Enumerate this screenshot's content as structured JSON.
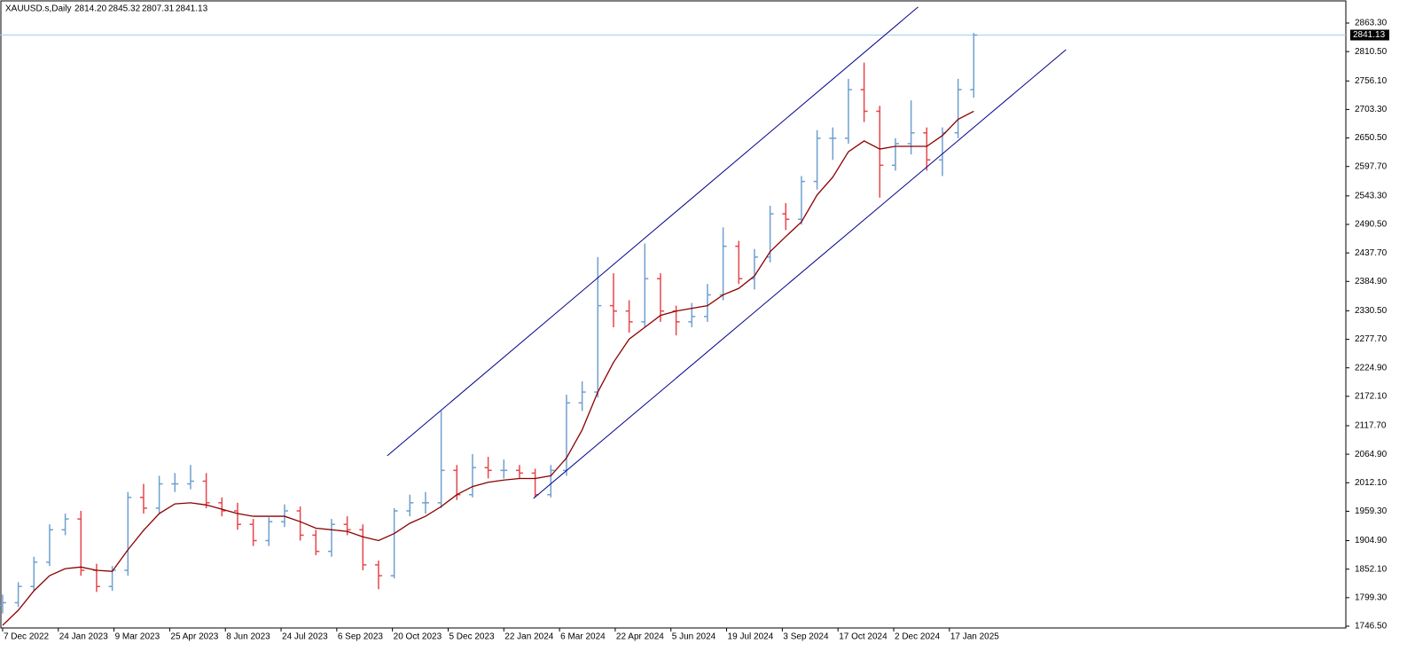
{
  "chart_data": {
    "type": "ohlc",
    "header": {
      "symbol": "XAUUSD.s,Daily",
      "open": "2814.20",
      "high": "2845.32",
      "low": "2807.31",
      "close": "2841.13"
    },
    "up_color": "#6f9fd0",
    "down_color": "#e8464b",
    "ma_color": "#8b0000",
    "trend_color": "#00008b",
    "price_line_color": "#9fd3ec",
    "xlim": [
      -1.5,
      771.8
    ],
    "ylim": [
      1743.2,
      2906.0
    ],
    "xticks": [
      {
        "value": 0,
        "label": "7 Dec 2022"
      },
      {
        "value": 32,
        "label": "24 Jan 2023"
      },
      {
        "value": 64,
        "label": "9 Mar 2023"
      },
      {
        "value": 96,
        "label": "25 Apr 2023"
      },
      {
        "value": 128,
        "label": "8 Jun 2023"
      },
      {
        "value": 160,
        "label": "24 Jul 2023"
      },
      {
        "value": 192,
        "label": "6 Sep 2023"
      },
      {
        "value": 224,
        "label": "20 Oct 2023"
      },
      {
        "value": 256,
        "label": "5 Dec 2023"
      },
      {
        "value": 288,
        "label": "22 Jan 2024"
      },
      {
        "value": 320,
        "label": "6 Mar 2024"
      },
      {
        "value": 352,
        "label": "22 Apr 2024"
      },
      {
        "value": 384,
        "label": "5 Jun 2024"
      },
      {
        "value": 416,
        "label": "19 Jul 2024"
      },
      {
        "value": 448,
        "label": "3 Sep 2024"
      },
      {
        "value": 480,
        "label": "17 Oct 2024"
      },
      {
        "value": 512,
        "label": "2 Dec 2024"
      },
      {
        "value": 544,
        "label": "17 Jan 2025"
      }
    ],
    "yticks": [
      {
        "value": 2863.3,
        "label": "2863.30"
      },
      {
        "value": 2810.5,
        "label": "2810.50"
      },
      {
        "value": 2756.1,
        "label": "2756.10"
      },
      {
        "value": 2703.3,
        "label": "2703.30"
      },
      {
        "value": 2650.5,
        "label": "2650.50"
      },
      {
        "value": 2597.7,
        "label": "2597.70"
      },
      {
        "value": 2543.3,
        "label": "2543.30"
      },
      {
        "value": 2490.5,
        "label": "2490.50"
      },
      {
        "value": 2437.7,
        "label": "2437.70"
      },
      {
        "value": 2384.9,
        "label": "2384.90"
      },
      {
        "value": 2330.5,
        "label": "2330.50"
      },
      {
        "value": 2277.7,
        "label": "2277.70"
      },
      {
        "value": 2224.9,
        "label": "2224.90"
      },
      {
        "value": 2172.1,
        "label": "2172.10"
      },
      {
        "value": 2117.7,
        "label": "2117.70"
      },
      {
        "value": 2064.9,
        "label": "2064.90"
      },
      {
        "value": 2012.1,
        "label": "2012.10"
      },
      {
        "value": 1959.3,
        "label": "1959.30"
      },
      {
        "value": 1904.9,
        "label": "1904.90"
      },
      {
        "value": 1852.1,
        "label": "1852.10"
      },
      {
        "value": 1799.3,
        "label": "1799.30"
      },
      {
        "value": 1746.5,
        "label": "1746.50"
      }
    ],
    "x": [
      0,
      9,
      18,
      27,
      36,
      45,
      54,
      63,
      72,
      81,
      90,
      99,
      108,
      117,
      126,
      135,
      144,
      153,
      162,
      171,
      180,
      189,
      198,
      207,
      216,
      225,
      234,
      243,
      252,
      261,
      270,
      279,
      288,
      297,
      306,
      315,
      324,
      333,
      342,
      351,
      360,
      369,
      378,
      387,
      396,
      405,
      414,
      423,
      432,
      441,
      450,
      459,
      468,
      477,
      486,
      495,
      504,
      513,
      522,
      531,
      540,
      549,
      558
    ],
    "open": [
      1785,
      1790,
      1820,
      1865,
      1925,
      1945,
      1850,
      1820,
      1850,
      1985,
      1965,
      2010,
      2010,
      2015,
      1975,
      1960,
      1935,
      1905,
      1940,
      1960,
      1915,
      1885,
      1935,
      1925,
      1860,
      1840,
      1960,
      1975,
      1975,
      2035,
      1990,
      2040,
      2035,
      2035,
      2030,
      1990,
      2035,
      2160,
      2180,
      2340,
      2330,
      2310,
      2390,
      2330,
      2310,
      2320,
      2360,
      2450,
      2390,
      2430,
      2510,
      2500,
      2570,
      2650,
      2650,
      2740,
      2700,
      2600,
      2640,
      2660,
      2610,
      2660,
      2740
    ],
    "high": [
      1805,
      1828,
      1875,
      1935,
      1955,
      1960,
      1862,
      1858,
      1995,
      2010,
      2025,
      2030,
      2045,
      2030,
      1985,
      1975,
      1945,
      1948,
      1972,
      1968,
      1925,
      1945,
      1950,
      1935,
      1868,
      1965,
      1990,
      1995,
      2145,
      2045,
      2065,
      2060,
      2055,
      2045,
      2038,
      2045,
      2175,
      2200,
      2430,
      2400,
      2350,
      2455,
      2400,
      2340,
      2345,
      2380,
      2485,
      2460,
      2445,
      2525,
      2530,
      2580,
      2665,
      2670,
      2760,
      2790,
      2710,
      2650,
      2720,
      2670,
      2670,
      2760,
      2845
    ],
    "low": [
      1770,
      1782,
      1812,
      1858,
      1915,
      1840,
      1810,
      1812,
      1840,
      1955,
      1955,
      1995,
      2000,
      1965,
      1950,
      1925,
      1895,
      1895,
      1930,
      1905,
      1878,
      1875,
      1915,
      1850,
      1815,
      1835,
      1950,
      1955,
      1965,
      1980,
      1985,
      2020,
      2020,
      2020,
      1985,
      1985,
      2025,
      2145,
      2170,
      2300,
      2290,
      2300,
      2310,
      2285,
      2300,
      2310,
      2350,
      2380,
      2370,
      2420,
      2480,
      2490,
      2555,
      2610,
      2640,
      2680,
      2540,
      2590,
      2620,
      2590,
      2580,
      2650,
      2725
    ],
    "close": [
      1790,
      1820,
      1865,
      1925,
      1945,
      1850,
      1820,
      1850,
      1985,
      1965,
      2010,
      2010,
      2015,
      1975,
      1960,
      1935,
      1905,
      1940,
      1960,
      1915,
      1885,
      1935,
      1925,
      1860,
      1840,
      1960,
      1975,
      1975,
      2035,
      1990,
      2040,
      2035,
      2035,
      2030,
      1990,
      2035,
      2160,
      2180,
      2340,
      2330,
      2310,
      2390,
      2330,
      2310,
      2320,
      2360,
      2450,
      2390,
      2430,
      2510,
      2500,
      2570,
      2650,
      2650,
      2740,
      2700,
      2600,
      2640,
      2660,
      2610,
      2660,
      2740,
      2841
    ],
    "ma": [
      1748,
      1776,
      1812,
      1840,
      1853,
      1856,
      1850,
      1848,
      1888,
      1924,
      1955,
      1973,
      1975,
      1971,
      1963,
      1955,
      1950,
      1950,
      1950,
      1940,
      1928,
      1925,
      1922,
      1912,
      1905,
      1918,
      1937,
      1950,
      1968,
      1990,
      2005,
      2013,
      2017,
      2020,
      2020,
      2025,
      2058,
      2110,
      2180,
      2235,
      2278,
      2300,
      2322,
      2330,
      2335,
      2340,
      2360,
      2372,
      2395,
      2440,
      2468,
      2495,
      2545,
      2578,
      2625,
      2645,
      2630,
      2635,
      2635,
      2635,
      2655,
      2685,
      2700
    ],
    "trendlines": [
      {
        "x": [
          221,
          526
        ],
        "y": [
          2062,
          2893
        ]
      },
      {
        "x": [
          305,
          611
        ],
        "y": [
          1983,
          2814
        ]
      }
    ]
  }
}
